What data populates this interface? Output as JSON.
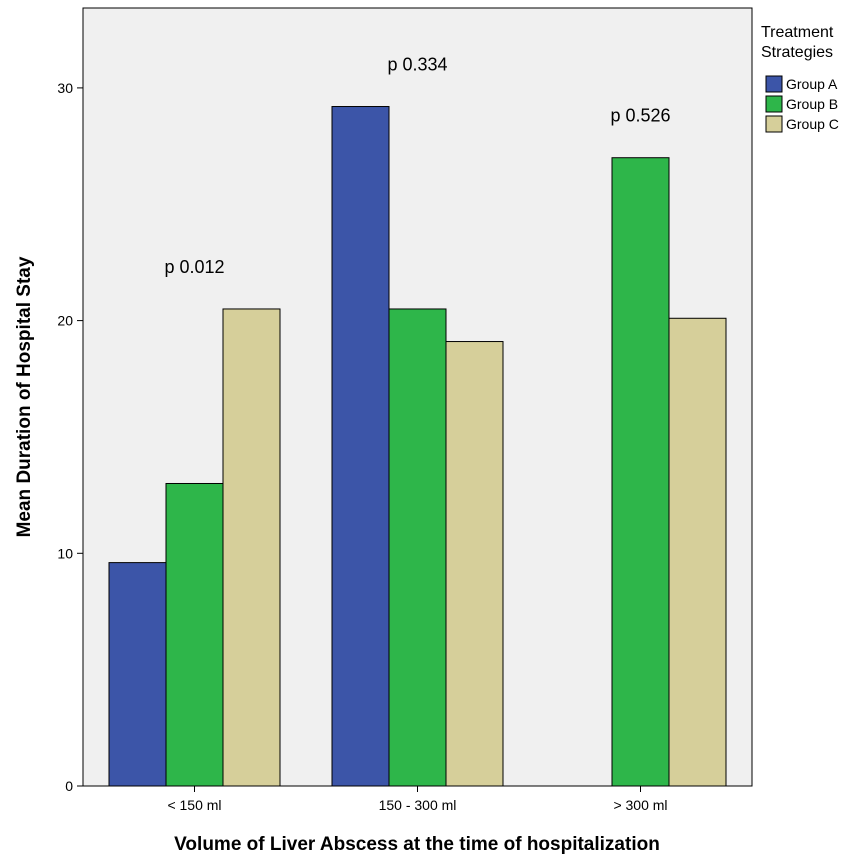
{
  "chart_data": {
    "type": "bar",
    "categories": [
      "< 150 ml",
      "150 - 300 ml",
      "> 300 ml"
    ],
    "series": [
      {
        "name": "Group A",
        "color": "#3c55a8",
        "values": [
          9.6,
          29.2,
          null
        ]
      },
      {
        "name": "Group B",
        "color": "#2eb64a",
        "values": [
          13.0,
          20.5,
          27.0
        ]
      },
      {
        "name": "Group C",
        "color": "#d6cf9a",
        "values": [
          20.5,
          19.1,
          20.1
        ]
      }
    ],
    "xlabel": "Volume of Liver Abscess at the time of hospitalization",
    "ylabel": "Mean Duration of Hospital Stay",
    "ylim": [
      0,
      30
    ],
    "yticks": [
      0,
      10,
      20,
      30
    ],
    "annotations": [
      "p 0.012",
      "p 0.334",
      "p 0.526"
    ],
    "legend": {
      "title_lines": [
        "Treatment",
        "Strategies"
      ],
      "position": "top-right"
    },
    "plot_background": "#f0f0f0",
    "grid": false
  }
}
